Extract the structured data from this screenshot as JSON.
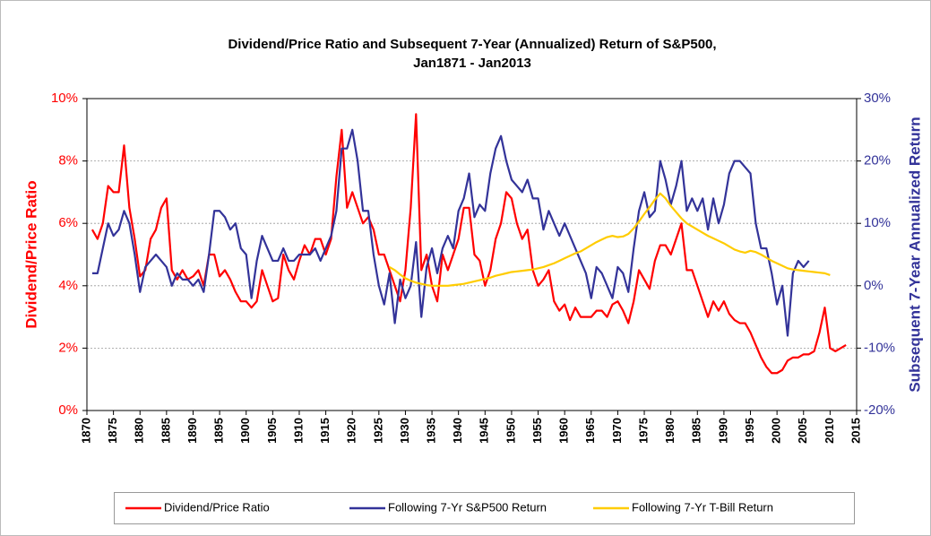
{
  "chart_data": {
    "type": "line",
    "title": "Dividend/Price Ratio and Subsequent 7-Year (Annualized) Return of S&P500,",
    "subtitle": "Jan1871 - Jan2013",
    "y_label": "Dividend/Price Ratio",
    "y2_label": "Subsequent 7-Year Annualized Return",
    "xlim": [
      1870,
      2015
    ],
    "xticks": [
      1870,
      1875,
      1880,
      1885,
      1890,
      1895,
      1900,
      1905,
      1910,
      1915,
      1920,
      1925,
      1930,
      1935,
      1940,
      1945,
      1950,
      1955,
      1960,
      1965,
      1970,
      1975,
      1980,
      1985,
      1990,
      1995,
      2000,
      2005,
      2010,
      2015
    ],
    "ylim": [
      0,
      10
    ],
    "yticks": [
      {
        "value": 0,
        "label": "0%"
      },
      {
        "value": 2,
        "label": "2%"
      },
      {
        "value": 4,
        "label": "4%"
      },
      {
        "value": 6,
        "label": "6%"
      },
      {
        "value": 8,
        "label": "8%"
      },
      {
        "value": 10,
        "label": "10%"
      }
    ],
    "y2lim": [
      -20,
      30
    ],
    "y2ticks": [
      {
        "value": -20,
        "label": "-20%"
      },
      {
        "value": -10,
        "label": "-10%"
      },
      {
        "value": 0,
        "label": "0%"
      },
      {
        "value": 10,
        "label": "10%"
      },
      {
        "value": 20,
        "label": "20%"
      },
      {
        "value": 30,
        "label": "30%"
      }
    ],
    "grid": true,
    "legend": "bottom",
    "x": [
      1871,
      1872,
      1873,
      1874,
      1875,
      1876,
      1877,
      1878,
      1879,
      1880,
      1881,
      1882,
      1883,
      1884,
      1885,
      1886,
      1887,
      1888,
      1889,
      1890,
      1891,
      1892,
      1893,
      1894,
      1895,
      1896,
      1897,
      1898,
      1899,
      1900,
      1901,
      1902,
      1903,
      1904,
      1905,
      1906,
      1907,
      1908,
      1909,
      1910,
      1911,
      1912,
      1913,
      1914,
      1915,
      1916,
      1917,
      1918,
      1919,
      1920,
      1921,
      1922,
      1923,
      1924,
      1925,
      1926,
      1927,
      1928,
      1929,
      1930,
      1931,
      1932,
      1933,
      1934,
      1935,
      1936,
      1937,
      1938,
      1939,
      1940,
      1941,
      1942,
      1943,
      1944,
      1945,
      1946,
      1947,
      1948,
      1949,
      1950,
      1951,
      1952,
      1953,
      1954,
      1955,
      1956,
      1957,
      1958,
      1959,
      1960,
      1961,
      1962,
      1963,
      1964,
      1965,
      1966,
      1967,
      1968,
      1969,
      1970,
      1971,
      1972,
      1973,
      1974,
      1975,
      1976,
      1977,
      1978,
      1979,
      1980,
      1981,
      1982,
      1983,
      1984,
      1985,
      1986,
      1987,
      1988,
      1989,
      1990,
      1991,
      1992,
      1993,
      1994,
      1995,
      1996,
      1997,
      1998,
      1999,
      2000,
      2001,
      2002,
      2003,
      2004,
      2005,
      2006,
      2007,
      2008,
      2009,
      2010,
      2011,
      2012,
      2013
    ],
    "series": [
      {
        "name": "Dividend/Price Ratio",
        "color": "#ff0000",
        "axis": "y",
        "values": [
          5.8,
          5.5,
          6.0,
          7.2,
          7.0,
          7.0,
          8.5,
          6.5,
          5.5,
          4.3,
          4.5,
          5.5,
          5.8,
          6.5,
          6.8,
          4.5,
          4.2,
          4.5,
          4.2,
          4.3,
          4.5,
          4.0,
          5.0,
          5.0,
          4.3,
          4.5,
          4.2,
          3.8,
          3.5,
          3.5,
          3.3,
          3.5,
          4.5,
          4.0,
          3.5,
          3.6,
          5.0,
          4.5,
          4.2,
          4.8,
          5.3,
          5.0,
          5.5,
          5.5,
          5.0,
          5.5,
          7.5,
          9.0,
          6.5,
          7.0,
          6.5,
          6.0,
          6.2,
          5.8,
          5.0,
          5.0,
          4.5,
          4.0,
          3.5,
          4.5,
          6.5,
          9.5,
          4.5,
          5.0,
          4.0,
          3.5,
          5.0,
          4.5,
          5.0,
          5.5,
          6.5,
          6.5,
          5.0,
          4.8,
          4.0,
          4.5,
          5.5,
          6.0,
          7.0,
          6.8,
          6.0,
          5.5,
          5.8,
          4.5,
          4.0,
          4.2,
          4.5,
          3.5,
          3.2,
          3.4,
          2.9,
          3.3,
          3.0,
          3.0,
          3.0,
          3.2,
          3.2,
          3.0,
          3.4,
          3.5,
          3.2,
          2.8,
          3.5,
          4.5,
          4.2,
          3.9,
          4.8,
          5.3,
          5.3,
          5.0,
          5.5,
          6.0,
          4.5,
          4.5,
          4.0,
          3.5,
          3.0,
          3.5,
          3.2,
          3.5,
          3.1,
          2.9,
          2.8,
          2.8,
          2.5,
          2.1,
          1.7,
          1.4,
          1.2,
          1.2,
          1.3,
          1.6,
          1.7,
          1.7,
          1.8,
          1.8,
          1.9,
          2.5,
          3.3,
          2.0,
          1.9,
          2.0,
          2.1
        ]
      },
      {
        "name": "Following 7-Yr S&P500 Return",
        "color": "#333399",
        "axis": "y2",
        "values": [
          2,
          2,
          6,
          10,
          8,
          9,
          12,
          10,
          5,
          -1,
          3,
          4,
          5,
          4,
          3,
          0,
          2,
          1,
          1,
          0,
          1,
          -1,
          5,
          12,
          12,
          11,
          9,
          10,
          6,
          5,
          -2,
          4,
          8,
          6,
          4,
          4,
          6,
          4,
          4,
          5,
          5,
          5,
          6,
          4,
          6,
          8,
          12,
          22,
          22,
          25,
          20,
          12,
          12,
          5,
          0,
          -3,
          2,
          -6,
          1,
          -2,
          0,
          7,
          -5,
          3,
          6,
          2,
          6,
          8,
          6,
          12,
          14,
          18,
          11,
          13,
          12,
          18,
          22,
          24,
          20,
          17,
          16,
          15,
          17,
          14,
          14,
          9,
          12,
          10,
          8,
          10,
          8,
          6,
          4,
          2,
          -2,
          3,
          2,
          0,
          -2,
          3,
          2,
          -1,
          6,
          12,
          15,
          11,
          12,
          20,
          17,
          13,
          16,
          20,
          12,
          14,
          12,
          14,
          9,
          14,
          10,
          13,
          18,
          20,
          20,
          19,
          18,
          10,
          6,
          6,
          2,
          -3,
          0,
          -8,
          2,
          4,
          3,
          4,
          null,
          null,
          null,
          null,
          null,
          null,
          null
        ]
      },
      {
        "name": "Following 7-Yr T-Bill Return",
        "color": "#ffcc00",
        "axis": "y2",
        "values": [
          null,
          null,
          null,
          null,
          null,
          null,
          null,
          null,
          null,
          null,
          null,
          null,
          null,
          null,
          null,
          null,
          null,
          null,
          null,
          null,
          null,
          null,
          null,
          null,
          null,
          null,
          null,
          null,
          null,
          null,
          null,
          null,
          null,
          null,
          null,
          null,
          null,
          null,
          null,
          null,
          null,
          null,
          null,
          null,
          null,
          null,
          null,
          null,
          null,
          null,
          null,
          null,
          null,
          null,
          null,
          null,
          3,
          2.5,
          1.8,
          1.2,
          0.8,
          0.5,
          0.3,
          0.1,
          0,
          0,
          0,
          0,
          0.1,
          0.2,
          0.3,
          0.5,
          0.7,
          0.9,
          1.1,
          1.3,
          1.6,
          1.8,
          2.0,
          2.2,
          2.3,
          2.4,
          2.5,
          2.6,
          2.8,
          3.0,
          3.3,
          3.6,
          4.0,
          4.4,
          4.8,
          5.2,
          5.5,
          6.0,
          6.5,
          7.0,
          7.4,
          7.8,
          8.0,
          7.8,
          7.9,
          8.3,
          9.2,
          10.3,
          11.5,
          12.6,
          13.8,
          14.8,
          14.0,
          12.8,
          11.8,
          10.8,
          10.0,
          9.5,
          9.0,
          8.5,
          8.0,
          7.6,
          7.2,
          6.8,
          6.3,
          5.8,
          5.5,
          5.3,
          5.6,
          5.4,
          5.0,
          4.5,
          4.0,
          3.6,
          3.2,
          2.8,
          2.6,
          2.5,
          2.4,
          2.3,
          2.2,
          2.1,
          2.0,
          1.7,
          null,
          null,
          null
        ]
      }
    ]
  }
}
